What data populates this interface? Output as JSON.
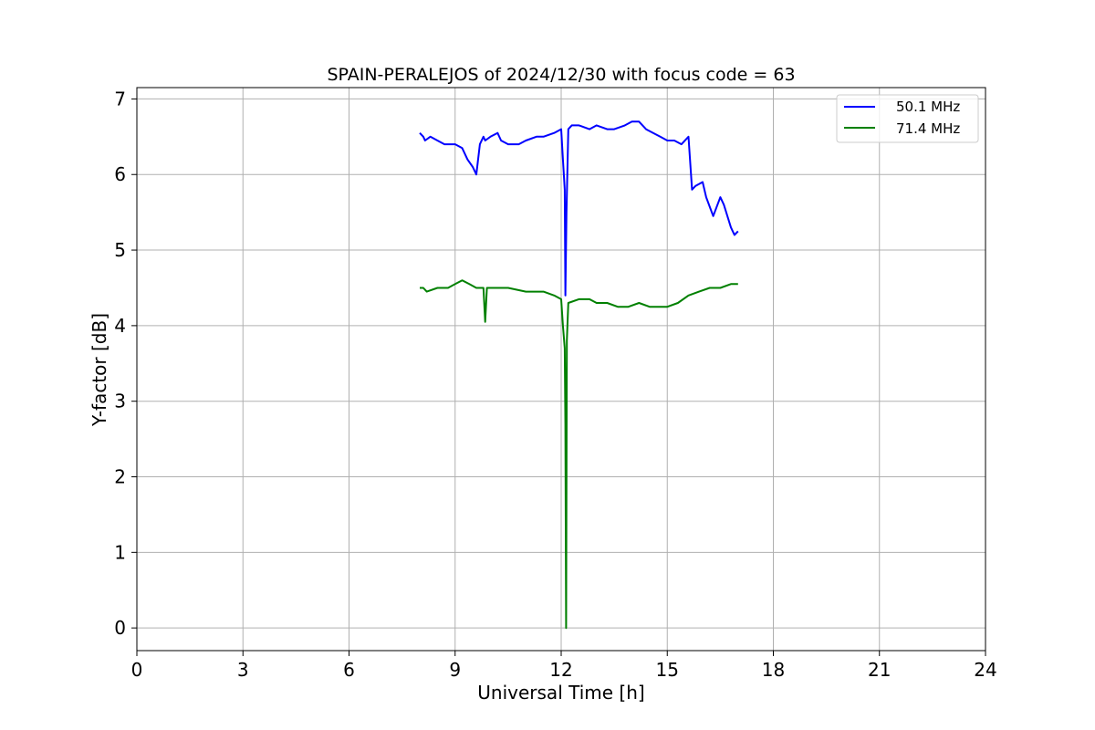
{
  "chart_data": {
    "type": "line",
    "title": "SPAIN-PERALEJOS of 2024/12/30 with focus code = 63",
    "xlabel": "Universal Time [h]",
    "ylabel": "Y-factor [dB]",
    "xlim": [
      0,
      24
    ],
    "ylim": [
      -0.3,
      7.15
    ],
    "xticks": [
      0,
      3,
      6,
      9,
      12,
      15,
      18,
      21,
      24
    ],
    "yticks": [
      0,
      1,
      2,
      3,
      4,
      5,
      6,
      7
    ],
    "grid": true,
    "legend_position": "top-right",
    "series": [
      {
        "name": "50.1 MHz",
        "color": "#0000ff",
        "x": [
          8.0,
          8.1,
          8.15,
          8.3,
          8.5,
          8.7,
          9.0,
          9.2,
          9.35,
          9.5,
          9.6,
          9.7,
          9.8,
          9.85,
          10.0,
          10.2,
          10.3,
          10.5,
          10.8,
          11.0,
          11.3,
          11.5,
          11.8,
          12.0,
          12.05,
          12.1,
          12.12,
          12.15,
          12.2,
          12.3,
          12.5,
          12.8,
          13.0,
          13.3,
          13.5,
          13.8,
          14.0,
          14.2,
          14.4,
          14.6,
          14.8,
          15.0,
          15.2,
          15.4,
          15.6,
          15.7,
          15.8,
          16.0,
          16.1,
          16.3,
          16.5,
          16.6,
          16.8,
          16.9,
          17.0
        ],
        "y": [
          6.55,
          6.5,
          6.45,
          6.5,
          6.45,
          6.4,
          6.4,
          6.35,
          6.2,
          6.1,
          6.0,
          6.4,
          6.5,
          6.45,
          6.5,
          6.55,
          6.45,
          6.4,
          6.4,
          6.45,
          6.5,
          6.5,
          6.55,
          6.6,
          6.2,
          5.8,
          4.4,
          5.5,
          6.6,
          6.65,
          6.65,
          6.6,
          6.65,
          6.6,
          6.6,
          6.65,
          6.7,
          6.7,
          6.6,
          6.55,
          6.5,
          6.45,
          6.45,
          6.4,
          6.5,
          5.8,
          5.85,
          5.9,
          5.7,
          5.45,
          5.7,
          5.6,
          5.3,
          5.2,
          5.25
        ]
      },
      {
        "name": "71.4 MHz",
        "color": "#008000",
        "x": [
          8.0,
          8.1,
          8.2,
          8.5,
          8.8,
          9.0,
          9.2,
          9.4,
          9.6,
          9.8,
          9.85,
          9.9,
          10.2,
          10.5,
          11.0,
          11.5,
          11.8,
          12.0,
          12.05,
          12.1,
          12.12,
          12.14,
          12.16,
          12.2,
          12.5,
          12.8,
          13.0,
          13.3,
          13.6,
          13.9,
          14.2,
          14.5,
          14.8,
          15.0,
          15.3,
          15.6,
          15.9,
          16.2,
          16.5,
          16.8,
          17.0
        ],
        "y": [
          4.5,
          4.5,
          4.45,
          4.5,
          4.5,
          4.55,
          4.6,
          4.55,
          4.5,
          4.5,
          4.05,
          4.5,
          4.5,
          4.5,
          4.45,
          4.45,
          4.4,
          4.35,
          4.0,
          3.7,
          2.7,
          0.0,
          3.8,
          4.3,
          4.35,
          4.35,
          4.3,
          4.3,
          4.25,
          4.25,
          4.3,
          4.25,
          4.25,
          4.25,
          4.3,
          4.4,
          4.45,
          4.5,
          4.5,
          4.55,
          4.55
        ]
      }
    ]
  }
}
